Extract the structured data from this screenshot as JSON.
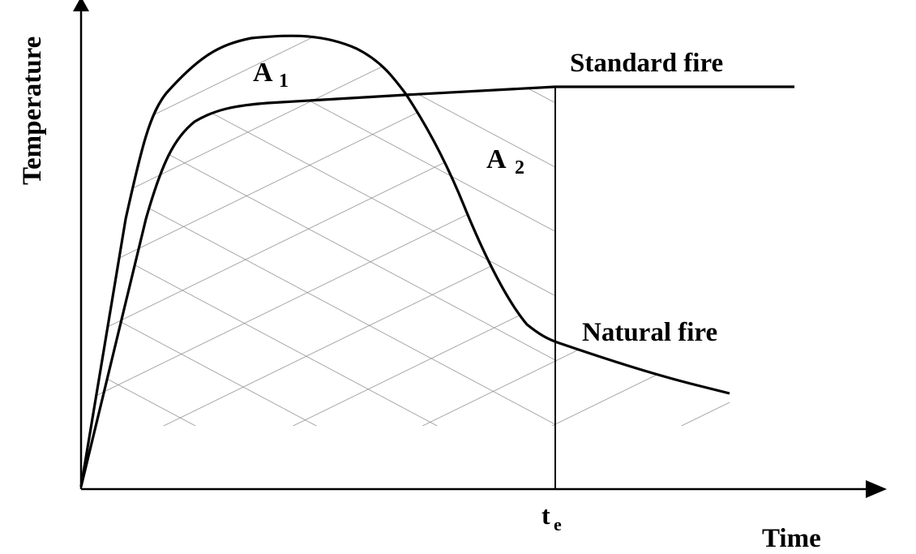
{
  "labels": {
    "y_axis": "Temperature",
    "x_axis": "Time",
    "standard_curve": "Standard fire",
    "natural_curve": "Natural fire",
    "area1_letter": "A",
    "area1_sub": "1",
    "area2_letter": "A",
    "area2_sub": "2",
    "time_marker_letter": "t",
    "time_marker_sub": "e"
  },
  "colors": {
    "ink": "#000000",
    "hatch": "#8c8c8c",
    "background": "#ffffff"
  }
}
